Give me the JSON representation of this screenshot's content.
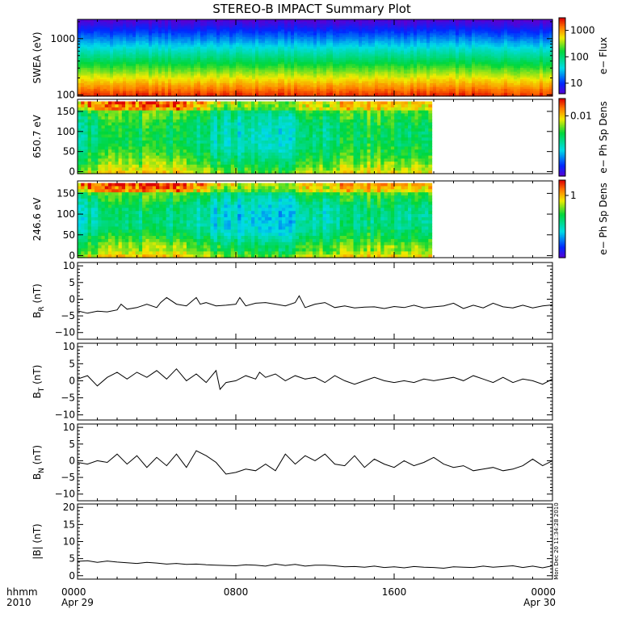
{
  "title": "STEREO-B IMPACT Summary Plot",
  "stamp": "Mon Dec 20 11:34:28 2010",
  "chart_data": [
    {
      "type": "heatmap",
      "ylabel": "SWEA (eV)",
      "yscale": "log",
      "ylim": [
        95,
        2200
      ],
      "ytick_values": [
        100,
        1000
      ],
      "ytick_labels": [
        "100",
        "1000"
      ],
      "colorbar": {
        "label": "e− Flux",
        "scale": "log",
        "range": [
          4,
          3000
        ],
        "ticks": [
          10,
          100,
          1000
        ],
        "tick_labels": [
          "10",
          "100",
          "1000"
        ]
      },
      "data_end_hour": 24
    },
    {
      "type": "heatmap",
      "ylabel": "650.7 eV",
      "ylim": [
        -5,
        180
      ],
      "ytick_values": [
        0,
        50,
        100,
        150
      ],
      "ytick_labels": [
        "0",
        "50",
        "100",
        "150"
      ],
      "colorbar": {
        "label": "e− Ph Sp Dens",
        "scale": "log",
        "range": [
          0.0009,
          0.02
        ],
        "ticks": [
          0.01
        ],
        "tick_labels": [
          "0.01"
        ]
      },
      "data_end_hour": 17.9
    },
    {
      "type": "heatmap",
      "ylabel": "246.6 eV",
      "ylim": [
        -5,
        180
      ],
      "ytick_values": [
        0,
        50,
        100,
        150
      ],
      "ytick_labels": [
        "0",
        "50",
        "100",
        "150"
      ],
      "colorbar": {
        "label": "e− Ph Sp Dens",
        "scale": "log",
        "range": [
          0.06,
          2
        ],
        "ticks": [
          1
        ],
        "tick_labels": [
          "1"
        ]
      },
      "data_end_hour": 17.9
    },
    {
      "type": "line",
      "ylabel": "B",
      "ylabel_sub": "R",
      "ylabel_unit": " (nT)",
      "ylim": [
        -12,
        11
      ],
      "ytick_values": [
        -10,
        -5,
        0,
        5,
        10
      ],
      "ytick_labels": [
        "−10",
        "−5",
        "0",
        "5",
        "10"
      ],
      "x": [
        0,
        0.5,
        1,
        1.5,
        2,
        2.2,
        2.5,
        3,
        3.5,
        4,
        4.2,
        4.5,
        5,
        5.5,
        6,
        6.2,
        6.5,
        7,
        7.5,
        8,
        8.2,
        8.5,
        9,
        9.5,
        10,
        10.5,
        11,
        11.2,
        11.5,
        12,
        12.5,
        13,
        13.5,
        14,
        14.5,
        15,
        15.5,
        16,
        16.5,
        17,
        17.5,
        18,
        18.5,
        19,
        19.5,
        20,
        20.5,
        21,
        21.5,
        22,
        22.5,
        23,
        23.5,
        24
      ],
      "y": [
        -3.5,
        -4.2,
        -3.6,
        -3.8,
        -3.2,
        -1.5,
        -3,
        -2.5,
        -1.5,
        -2.5,
        -1,
        0.5,
        -1.5,
        -2,
        0.5,
        -1.5,
        -1,
        -2,
        -1.8,
        -1.5,
        0.5,
        -2,
        -1.2,
        -1,
        -1.5,
        -2,
        -1,
        1,
        -2.5,
        -1.5,
        -1,
        -2.5,
        -2,
        -2.6,
        -2.4,
        -2.3,
        -2.8,
        -2.2,
        -2.5,
        -1.8,
        -2.6,
        -2.3,
        -2,
        -1.2,
        -2.8,
        -1.8,
        -2.6,
        -1.2,
        -2.3,
        -2.6,
        -1.8,
        -2.6,
        -2,
        -1.7
      ]
    },
    {
      "type": "line",
      "ylabel": "B",
      "ylabel_sub": "T",
      "ylabel_unit": " (nT)",
      "ylim": [
        -11.5,
        11
      ],
      "ytick_values": [
        -10,
        -5,
        0,
        5,
        10
      ],
      "ytick_labels": [
        "−10",
        "−5",
        "0",
        "5",
        "10"
      ],
      "x": [
        0,
        0.5,
        1,
        1.5,
        2,
        2.5,
        3,
        3.5,
        4,
        4.5,
        5,
        5.5,
        6,
        6.5,
        7,
        7.2,
        7.5,
        8,
        8.5,
        9,
        9.2,
        9.5,
        10,
        10.5,
        11,
        11.5,
        12,
        12.5,
        13,
        13.5,
        14,
        14.5,
        15,
        15.5,
        16,
        16.5,
        17,
        17.5,
        18,
        18.5,
        19,
        19.5,
        20,
        20.5,
        21,
        21.5,
        22,
        22.5,
        23,
        23.5,
        24
      ],
      "y": [
        0.5,
        1.5,
        -1.5,
        1,
        2.5,
        0.5,
        2.5,
        1,
        3,
        0.5,
        3.5,
        0,
        2,
        -0.5,
        3,
        -2.5,
        -0.5,
        0,
        1.5,
        0.5,
        2.5,
        1,
        2,
        0,
        1.5,
        0.5,
        1,
        -0.5,
        1.5,
        0,
        -1,
        0,
        1,
        0,
        -0.5,
        0,
        -0.5,
        0.5,
        0,
        0.5,
        1,
        0,
        1.5,
        0.5,
        -0.5,
        1,
        -0.5,
        0.5,
        0,
        -1,
        0.5
      ]
    },
    {
      "type": "line",
      "ylabel": "B",
      "ylabel_sub": "N",
      "ylabel_unit": " (nT)",
      "ylim": [
        -12,
        11
      ],
      "ytick_values": [
        -10,
        -5,
        0,
        5,
        10
      ],
      "ytick_labels": [
        "−10",
        "−5",
        "0",
        "5",
        "10"
      ],
      "x": [
        0,
        0.5,
        1,
        1.5,
        2,
        2.5,
        3,
        3.5,
        4,
        4.5,
        5,
        5.5,
        6,
        6.5,
        7,
        7.5,
        8,
        8.5,
        9,
        9.5,
        10,
        10.5,
        11,
        11.5,
        12,
        12.5,
        13,
        13.5,
        14,
        14.5,
        15,
        15.5,
        16,
        16.5,
        17,
        17.5,
        18,
        18.5,
        19,
        19.5,
        20,
        20.5,
        21,
        21.5,
        22,
        22.5,
        23,
        23.5,
        24
      ],
      "y": [
        -0.5,
        -1,
        0,
        -0.5,
        2,
        -1,
        1.5,
        -2,
        1,
        -1.5,
        2,
        -2,
        3,
        1.5,
        -0.5,
        -4,
        -3.5,
        -2.5,
        -3,
        -1,
        -3,
        2,
        -1,
        1.5,
        0,
        2,
        -1,
        -1.5,
        1.5,
        -2,
        0.5,
        -1,
        -2,
        0,
        -1.5,
        -0.5,
        1,
        -1,
        -2,
        -1.5,
        -3,
        -2.5,
        -2,
        -3,
        -2.5,
        -1.5,
        0.5,
        -1.5,
        0
      ]
    },
    {
      "type": "line",
      "ylabel": "|B|",
      "ylabel_unit": " (nT)",
      "ylim": [
        -1,
        21
      ],
      "ytick_values": [
        0,
        5,
        10,
        15,
        20
      ],
      "ytick_labels": [
        "0",
        "5",
        "10",
        "15",
        "20"
      ],
      "x": [
        0,
        0.5,
        1,
        1.5,
        2,
        2.5,
        3,
        3.5,
        4,
        4.5,
        5,
        5.5,
        6,
        6.5,
        7,
        7.5,
        8,
        8.5,
        9,
        9.5,
        10,
        10.5,
        11,
        11.5,
        12,
        12.5,
        13,
        13.5,
        14,
        14.5,
        15,
        15.5,
        16,
        16.5,
        17,
        17.5,
        18,
        18.5,
        19,
        19.5,
        20,
        20.5,
        21,
        21.5,
        22,
        22.5,
        23,
        23.5,
        24
      ],
      "y": [
        4.2,
        4.4,
        3.9,
        4.3,
        4,
        3.8,
        3.6,
        3.9,
        3.7,
        3.4,
        3.6,
        3.3,
        3.4,
        3.2,
        3.1,
        3,
        2.9,
        3.2,
        3.1,
        2.8,
        3.4,
        3,
        3.3,
        2.8,
        3.1,
        3.1,
        2.9,
        2.6,
        2.7,
        2.5,
        2.8,
        2.4,
        2.6,
        2.3,
        2.7,
        2.5,
        2.4,
        2.2,
        2.6,
        2.5,
        2.4,
        2.8,
        2.5,
        2.7,
        2.9,
        2.4,
        2.8,
        2.3,
        2.9
      ]
    }
  ],
  "x_axis": {
    "range_hours": [
      0,
      24
    ],
    "row1_label": "hhmm",
    "row2_label": "2010",
    "ticks": [
      {
        "hour": 0,
        "label": "0000",
        "sublabel": "Apr 29"
      },
      {
        "hour": 8,
        "label": "0800",
        "sublabel": ""
      },
      {
        "hour": 16,
        "label": "1600",
        "sublabel": ""
      },
      {
        "hour": 24,
        "label": "0000",
        "sublabel": "Apr 30"
      }
    ],
    "minor_step_hours": 1
  }
}
